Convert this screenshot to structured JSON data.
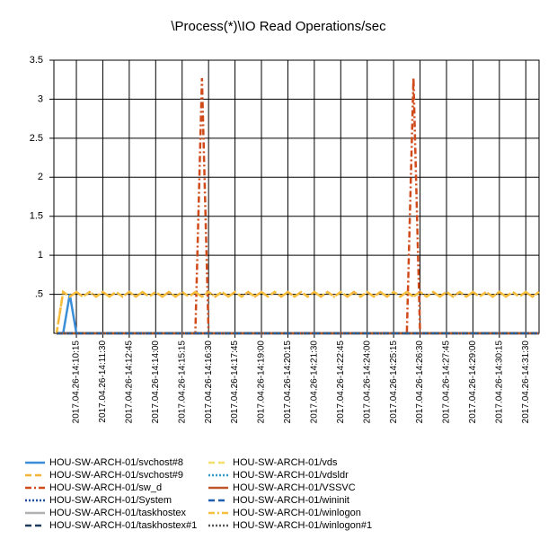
{
  "chart_data": {
    "type": "line",
    "title": "\\Process(*)\\IO Read Operations/sec",
    "categories": [
      null,
      null,
      null,
      "2017.04.26-14:10:15",
      null,
      null,
      null,
      "2017.04.26-14:11:30",
      null,
      null,
      null,
      "2017.04.26-14:12:45",
      null,
      null,
      null,
      "2017.04.26-14:14:00",
      null,
      null,
      null,
      "2017.04.26-14:15:15",
      null,
      null,
      null,
      "2017.04.26-14:16:30",
      null,
      null,
      null,
      "2017.04.26-14:17:45",
      null,
      null,
      null,
      "2017.04.26-14:19:00",
      null,
      null,
      null,
      "2017.04.26-14:20:15",
      null,
      null,
      null,
      "2017.04.26-14:21:30",
      null,
      null,
      null,
      "2017.04.26-14:22:45",
      null,
      null,
      null,
      "2017.04.26-14:24:00",
      null,
      null,
      null,
      "2017.04.26-14:25:15",
      null,
      null,
      null,
      "2017.04.26-14:26:30",
      null,
      null,
      null,
      "2017.04.26-14:27:45",
      null,
      null,
      null,
      "2017.04.26-14:29:00",
      null,
      null,
      null,
      "2017.04.26-14:30:15",
      null,
      null,
      null,
      "2017.04.26-14:31:30",
      null,
      null
    ],
    "ylim": [
      0,
      3.5
    ],
    "yticks": [
      {
        "value": 0.5,
        "label": ".5"
      },
      1,
      1.5,
      2,
      2.5,
      3,
      3.5
    ],
    "grid": true,
    "series": [
      {
        "name": "HOU-SW-ARCH-01/svchost#8",
        "color": "#3b8ed8",
        "style": "solid",
        "values": [
          0,
          0,
          0.5,
          0,
          0,
          0,
          0,
          0,
          0,
          0,
          0,
          0,
          0,
          0,
          0,
          0,
          0,
          0,
          0,
          0,
          0,
          0,
          0,
          0,
          0,
          0,
          0,
          0,
          0,
          0,
          0,
          0,
          0,
          0,
          0,
          0,
          0,
          0,
          0,
          0,
          0,
          0,
          0,
          0,
          0,
          0,
          0,
          0,
          0,
          0,
          0,
          0,
          0,
          0,
          0,
          0,
          0,
          0,
          0,
          0,
          0,
          0,
          0,
          0,
          0,
          0,
          0,
          0,
          0,
          0,
          0,
          0,
          0,
          0
        ]
      },
      {
        "name": "HOU-SW-ARCH-01/svchost#9",
        "color": "#f5b335",
        "style": "dashed",
        "values": [
          0,
          0.53,
          0.47,
          0.53,
          0.47,
          0.53,
          0.47,
          0.53,
          0.47,
          0.53,
          0.47,
          0.53,
          0.47,
          0.53,
          0.47,
          0.53,
          0.47,
          0.53,
          0.47,
          0.53,
          0.47,
          0.53,
          0.47,
          0.53,
          0.47,
          0.53,
          0.47,
          0.53,
          0.47,
          0.53,
          0.47,
          0.53,
          0.47,
          0.53,
          0.47,
          0.53,
          0.47,
          0.53,
          0.47,
          0.53,
          0.47,
          0.53,
          0.47,
          0.53,
          0.47,
          0.53,
          0.47,
          0.53,
          0.47,
          0.53,
          0.47,
          0.53,
          0.47,
          0.53,
          0.47,
          0.53,
          0.47,
          0.53,
          0.47,
          0.53,
          0.47,
          0.53,
          0.47,
          0.53,
          0.47,
          0.53,
          0.47,
          0.53,
          0.47,
          0.53,
          0.47,
          0.53,
          0.47,
          0.53
        ]
      },
      {
        "name": "HOU-SW-ARCH-01/sw_d",
        "color": "#d04a1a",
        "style": "dashdot",
        "values": [
          0,
          0,
          0,
          0,
          0,
          0,
          0,
          0,
          0,
          0,
          0,
          0,
          0,
          0,
          0,
          0,
          0,
          0,
          0,
          0,
          0,
          0,
          3.27,
          0,
          0,
          0,
          0,
          0,
          0,
          0,
          0,
          0,
          0,
          0,
          0,
          0,
          0,
          0,
          0,
          0,
          0,
          0,
          0,
          0,
          0,
          0,
          0,
          0,
          0,
          0,
          0,
          0,
          0,
          0,
          3.27,
          0,
          0,
          0,
          0,
          0,
          0,
          0,
          0,
          0,
          0,
          0,
          0,
          0,
          0,
          0,
          0,
          0,
          0,
          0
        ]
      },
      {
        "name": "HOU-SW-ARCH-01/System",
        "color": "#1f4e9b",
        "style": "dotted",
        "values": [
          0,
          0,
          0,
          0,
          0,
          0,
          0,
          0,
          0,
          0,
          0,
          0,
          0,
          0,
          0,
          0,
          0,
          0,
          0,
          0,
          0,
          0,
          0,
          0,
          0,
          0,
          0,
          0,
          0,
          0,
          0,
          0,
          0,
          0,
          0,
          0,
          0,
          0,
          0,
          0,
          0,
          0,
          0,
          0,
          0,
          0,
          0,
          0,
          0,
          0,
          0,
          0,
          0,
          0,
          0,
          0,
          0,
          0,
          0,
          0,
          0,
          0,
          0,
          0,
          0,
          0,
          0,
          0,
          0,
          0,
          0,
          0,
          0,
          0
        ]
      },
      {
        "name": "HOU-SW-ARCH-01/taskhostex",
        "color": "#b0b0b0",
        "style": "solid",
        "values": [
          0,
          0,
          0,
          0,
          0,
          0,
          0,
          0,
          0,
          0,
          0,
          0,
          0,
          0,
          0,
          0,
          0,
          0,
          0,
          0,
          0,
          0,
          0,
          0,
          0,
          0,
          0,
          0,
          0,
          0,
          0,
          0,
          0,
          0,
          0,
          0,
          0,
          0,
          0,
          0,
          0,
          0,
          0,
          0,
          0,
          0,
          0,
          0,
          0,
          0,
          0,
          0,
          0,
          0,
          0,
          0,
          0,
          0,
          0,
          0,
          0,
          0,
          0,
          0,
          0,
          0,
          0,
          0,
          0,
          0,
          0,
          0,
          0,
          0
        ]
      },
      {
        "name": "HOU-SW-ARCH-01/taskhostex#1",
        "color": "#1f3a5f",
        "style": "dashed",
        "values": [
          0,
          0,
          0,
          0,
          0,
          0,
          0,
          0,
          0,
          0,
          0,
          0,
          0,
          0,
          0,
          0,
          0,
          0,
          0,
          0,
          0,
          0,
          0,
          0,
          0,
          0,
          0,
          0,
          0,
          0,
          0,
          0,
          0,
          0,
          0,
          0,
          0,
          0,
          0,
          0,
          0,
          0,
          0,
          0,
          0,
          0,
          0,
          0,
          0,
          0,
          0,
          0,
          0,
          0,
          0,
          0,
          0,
          0,
          0,
          0,
          0,
          0,
          0,
          0,
          0,
          0,
          0,
          0,
          0,
          0,
          0,
          0,
          0,
          0
        ]
      },
      {
        "name": "HOU-SW-ARCH-01/vds",
        "color": "#f5e06e",
        "style": "dashed",
        "values": [
          0,
          0,
          0,
          0,
          0,
          0,
          0,
          0,
          0,
          0,
          0,
          0,
          0,
          0,
          0,
          0,
          0,
          0,
          0,
          0,
          0,
          0,
          0,
          0,
          0,
          0,
          0,
          0,
          0,
          0,
          0,
          0,
          0,
          0,
          0,
          0,
          0,
          0,
          0,
          0,
          0,
          0,
          0,
          0,
          0,
          0,
          0,
          0,
          0,
          0,
          0,
          0,
          0,
          0,
          0,
          0,
          0,
          0,
          0,
          0,
          0,
          0,
          0,
          0,
          0,
          0,
          0,
          0,
          0,
          0,
          0,
          0,
          0,
          0
        ]
      },
      {
        "name": "HOU-SW-ARCH-01/vdsldr",
        "color": "#2e9bc8",
        "style": "dotted",
        "values": [
          0,
          0,
          0,
          0,
          0,
          0,
          0,
          0,
          0,
          0,
          0,
          0,
          0,
          0,
          0,
          0,
          0,
          0,
          0,
          0,
          0,
          0,
          0,
          0,
          0,
          0,
          0,
          0,
          0,
          0,
          0,
          0,
          0,
          0,
          0,
          0,
          0,
          0,
          0,
          0,
          0,
          0,
          0,
          0,
          0,
          0,
          0,
          0,
          0,
          0,
          0,
          0,
          0,
          0,
          0,
          0,
          0,
          0,
          0,
          0,
          0,
          0,
          0,
          0,
          0,
          0,
          0,
          0,
          0,
          0,
          0,
          0,
          0,
          0
        ]
      },
      {
        "name": "HOU-SW-ARCH-01/VSSVC",
        "color": "#c0552a",
        "style": "solid",
        "values": [
          0,
          0,
          0,
          0,
          0,
          0,
          0,
          0,
          0,
          0,
          0,
          0,
          0,
          0,
          0,
          0,
          0,
          0,
          0,
          0,
          0,
          0,
          0,
          0,
          0,
          0,
          0,
          0,
          0,
          0,
          0,
          0,
          0,
          0,
          0,
          0,
          0,
          0,
          0,
          0,
          0,
          0,
          0,
          0,
          0,
          0,
          0,
          0,
          0,
          0,
          0,
          0,
          0,
          0,
          0,
          0,
          0,
          0,
          0,
          0,
          0,
          0,
          0,
          0,
          0,
          0,
          0,
          0,
          0,
          0,
          0,
          0,
          0,
          0
        ]
      },
      {
        "name": "HOU-SW-ARCH-01/wininit",
        "color": "#1f5fb0",
        "style": "dashed",
        "values": [
          0,
          0,
          0,
          0,
          0,
          0,
          0,
          0,
          0,
          0,
          0,
          0,
          0,
          0,
          0,
          0,
          0,
          0,
          0,
          0,
          0,
          0,
          0,
          0,
          0,
          0,
          0,
          0,
          0,
          0,
          0,
          0,
          0,
          0,
          0,
          0,
          0,
          0,
          0,
          0,
          0,
          0,
          0,
          0,
          0,
          0,
          0,
          0,
          0,
          0,
          0,
          0,
          0,
          0,
          0,
          0,
          0,
          0,
          0,
          0,
          0,
          0,
          0,
          0,
          0,
          0,
          0,
          0,
          0,
          0,
          0,
          0,
          0,
          0
        ]
      },
      {
        "name": "HOU-SW-ARCH-01/winlogon",
        "color": "#f5c040",
        "style": "dashdot",
        "values": [
          0,
          0.53,
          0.47,
          0.53,
          0.47,
          0.53,
          0.47,
          0.53,
          0.47,
          0.53,
          0.47,
          0.53,
          0.47,
          0.53,
          0.47,
          0.53,
          0.47,
          0.53,
          0.47,
          0.53,
          0.47,
          0.53,
          0.47,
          0.53,
          0.47,
          0.53,
          0.47,
          0.53,
          0.47,
          0.53,
          0.47,
          0.53,
          0.47,
          0.53,
          0.47,
          0.53,
          0.47,
          0.53,
          0.47,
          0.53,
          0.47,
          0.53,
          0.47,
          0.53,
          0.47,
          0.53,
          0.47,
          0.53,
          0.47,
          0.53,
          0.47,
          0.53,
          0.47,
          0.53,
          0.47,
          0.53,
          0.47,
          0.53,
          0.47,
          0.53,
          0.47,
          0.53,
          0.47,
          0.53,
          0.47,
          0.53,
          0.47,
          0.53,
          0.47,
          0.53,
          0.47,
          0.53,
          0.47,
          0.53
        ]
      },
      {
        "name": "HOU-SW-ARCH-01/winlogon#1",
        "color": "#555555",
        "style": "dotted",
        "values": [
          0,
          0,
          0,
          0,
          0,
          0,
          0,
          0,
          0,
          0,
          0,
          0,
          0,
          0,
          0,
          0,
          0,
          0,
          0,
          0,
          0,
          0,
          0,
          0,
          0,
          0,
          0,
          0,
          0,
          0,
          0,
          0,
          0,
          0,
          0,
          0,
          0,
          0,
          0,
          0,
          0,
          0,
          0,
          0,
          0,
          0,
          0,
          0,
          0,
          0,
          0,
          0,
          0,
          0,
          0,
          0,
          0,
          0,
          0,
          0,
          0,
          0,
          0,
          0,
          0,
          0,
          0,
          0,
          0,
          0,
          0,
          0,
          0,
          0
        ]
      }
    ]
  }
}
